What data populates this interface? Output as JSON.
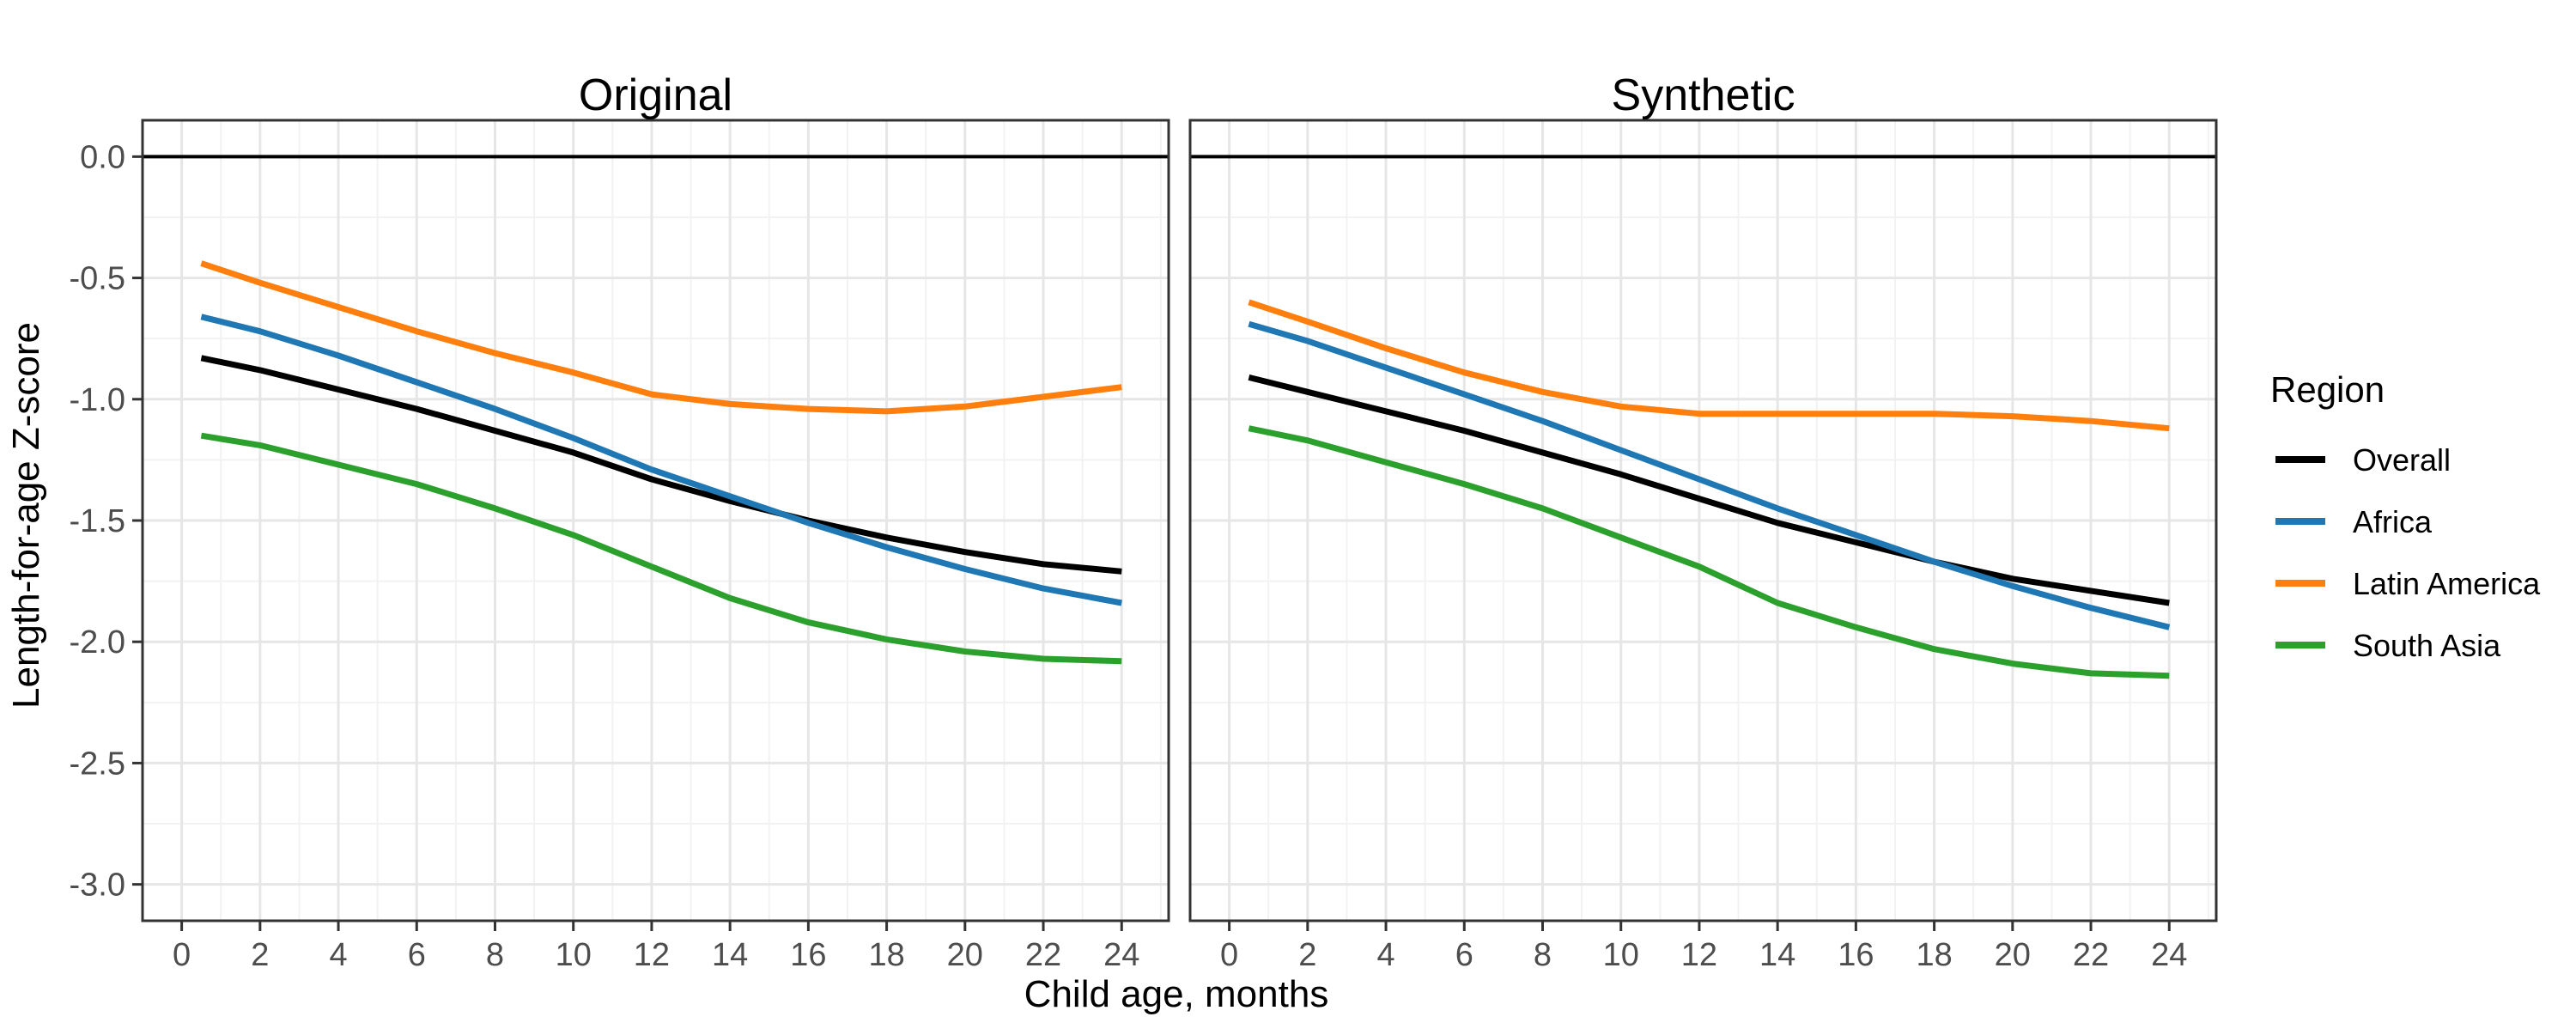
{
  "chart_data": {
    "type": "line",
    "panels": [
      "Original",
      "Synthetic"
    ],
    "xlabel": "Child age, months",
    "ylabel": "Length-for-age Z-score",
    "xlim": [
      -1,
      25.2
    ],
    "ylim": [
      -3.15,
      0.15
    ],
    "xticks": [
      0,
      2,
      4,
      6,
      8,
      10,
      12,
      14,
      16,
      18,
      20,
      22,
      24
    ],
    "yticks": [
      -3.0,
      -2.5,
      -2.0,
      -1.5,
      -1.0,
      -0.5,
      0.0
    ],
    "ytick_labels": [
      "-3.0",
      "-2.5",
      "-2.0",
      "-1.5",
      "-1.0",
      "-0.5",
      "0.0"
    ],
    "reference_line_y": 0.0,
    "grid": true,
    "legend": {
      "title": "Region",
      "position": "right",
      "entries": [
        "Overall",
        "Africa",
        "Latin America",
        "South Asia"
      ]
    },
    "colors": {
      "Overall": "#000000",
      "Africa": "#1f77b4",
      "Latin America": "#ff7f0e",
      "South Asia": "#2ca02c"
    },
    "x": [
      0.5,
      2,
      4,
      6,
      8,
      10,
      12,
      14,
      16,
      18,
      20,
      22,
      24
    ],
    "series": {
      "Original": [
        {
          "name": "Overall",
          "values": [
            -0.83,
            -0.88,
            -0.96,
            -1.04,
            -1.13,
            -1.22,
            -1.33,
            -1.42,
            -1.5,
            -1.57,
            -1.63,
            -1.68,
            -1.71
          ]
        },
        {
          "name": "Africa",
          "values": [
            -0.66,
            -0.72,
            -0.82,
            -0.93,
            -1.04,
            -1.16,
            -1.29,
            -1.4,
            -1.51,
            -1.61,
            -1.7,
            -1.78,
            -1.84
          ]
        },
        {
          "name": "Latin America",
          "values": [
            -0.44,
            -0.52,
            -0.62,
            -0.72,
            -0.81,
            -0.89,
            -0.98,
            -1.02,
            -1.04,
            -1.05,
            -1.03,
            -0.99,
            -0.95
          ]
        },
        {
          "name": "South Asia",
          "values": [
            -1.15,
            -1.19,
            -1.27,
            -1.35,
            -1.45,
            -1.56,
            -1.69,
            -1.82,
            -1.92,
            -1.99,
            -2.04,
            -2.07,
            -2.08
          ]
        }
      ],
      "Synthetic": [
        {
          "name": "Overall",
          "values": [
            -0.91,
            -0.97,
            -1.05,
            -1.13,
            -1.22,
            -1.31,
            -1.41,
            -1.51,
            -1.59,
            -1.67,
            -1.74,
            -1.79,
            -1.84
          ]
        },
        {
          "name": "Africa",
          "values": [
            -0.69,
            -0.76,
            -0.87,
            -0.98,
            -1.09,
            -1.21,
            -1.33,
            -1.45,
            -1.56,
            -1.67,
            -1.77,
            -1.86,
            -1.94
          ]
        },
        {
          "name": "Latin America",
          "values": [
            -0.6,
            -0.68,
            -0.79,
            -0.89,
            -0.97,
            -1.03,
            -1.06,
            -1.06,
            -1.06,
            -1.06,
            -1.07,
            -1.09,
            -1.12
          ]
        },
        {
          "name": "South Asia",
          "values": [
            -1.12,
            -1.17,
            -1.26,
            -1.35,
            -1.45,
            -1.57,
            -1.69,
            -1.84,
            -1.94,
            -2.03,
            -2.09,
            -2.13,
            -2.14
          ]
        }
      ]
    }
  }
}
